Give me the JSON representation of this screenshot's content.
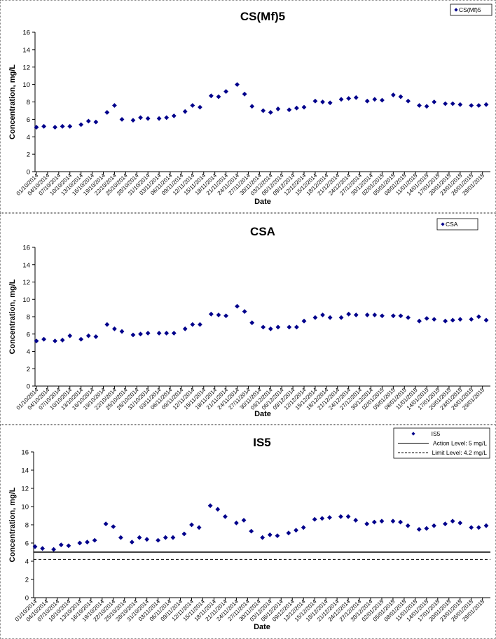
{
  "chart_data": [
    {
      "type": "scatter",
      "title": "CS(Mf)5",
      "xlabel": "Date",
      "ylabel": "Concentration, mg/L",
      "ylim": [
        0,
        16
      ],
      "yticks": [
        0,
        2,
        4,
        6,
        8,
        10,
        12,
        14,
        16
      ],
      "grid": false,
      "legend_position": "top-right",
      "x_range": [
        "01/10/2014",
        "30/01/2015"
      ],
      "x_tick_labels": [
        "01/10/2014",
        "04/10/2014",
        "07/10/2014",
        "10/10/2014",
        "13/10/2014",
        "16/10/2014",
        "19/10/2014",
        "22/10/2014",
        "25/10/2014",
        "28/10/2014",
        "31/10/2014",
        "03/11/2014",
        "06/11/2014",
        "09/11/2014",
        "12/11/2014",
        "15/11/2014",
        "18/11/2014",
        "21/11/2014",
        "24/11/2014",
        "27/11/2014",
        "30/11/2014",
        "03/12/2014",
        "06/12/2014",
        "09/12/2014",
        "12/12/2014",
        "15/12/2014",
        "18/12/2014",
        "21/12/2014",
        "24/12/2014",
        "27/12/2014",
        "30/12/2014",
        "02/01/2015",
        "05/01/2015",
        "08/01/2015",
        "11/01/2015",
        "14/01/2015",
        "17/01/2015",
        "20/01/2015",
        "23/01/2015",
        "26/01/2015",
        "29/01/2015"
      ],
      "series": [
        {
          "name": "CS(Mf)5",
          "color": "#00008B",
          "marker": "diamond",
          "x": [
            "01/10/2014",
            "03/10/2014",
            "06/10/2014",
            "08/10/2014",
            "10/10/2014",
            "13/10/2014",
            "15/10/2014",
            "17/10/2014",
            "20/10/2014",
            "22/10/2014",
            "24/10/2014",
            "27/10/2014",
            "29/10/2014",
            "31/10/2014",
            "03/11/2014",
            "05/11/2014",
            "07/11/2014",
            "10/11/2014",
            "12/11/2014",
            "14/11/2014",
            "17/11/2014",
            "19/11/2014",
            "21/11/2014",
            "24/11/2014",
            "26/11/2014",
            "28/11/2014",
            "01/12/2014",
            "03/12/2014",
            "05/12/2014",
            "08/12/2014",
            "10/12/2014",
            "12/12/2014",
            "15/12/2014",
            "17/12/2014",
            "19/12/2014",
            "22/12/2014",
            "24/12/2014",
            "26/12/2014",
            "29/12/2014",
            "31/12/2014",
            "02/01/2015",
            "05/01/2015",
            "07/01/2015",
            "09/01/2015",
            "12/01/2015",
            "14/01/2015",
            "16/01/2015",
            "19/01/2015",
            "21/01/2015",
            "23/01/2015",
            "26/01/2015",
            "28/01/2015",
            "30/01/2015"
          ],
          "y": [
            5.1,
            5.2,
            5.1,
            5.2,
            5.2,
            5.4,
            5.8,
            5.7,
            6.8,
            7.6,
            6.0,
            5.9,
            6.2,
            6.1,
            6.1,
            6.2,
            6.4,
            6.9,
            7.6,
            7.4,
            8.7,
            8.6,
            9.2,
            10.0,
            8.9,
            7.5,
            7.0,
            6.8,
            7.2,
            7.1,
            7.3,
            7.4,
            8.1,
            8.0,
            7.9,
            8.3,
            8.4,
            8.5,
            8.1,
            8.3,
            8.2,
            8.8,
            8.6,
            8.1,
            7.6,
            7.5,
            8.0,
            7.8,
            7.8,
            7.7,
            7.6,
            7.6,
            7.7
          ]
        }
      ]
    },
    {
      "type": "scatter",
      "title": "CSA",
      "xlabel": "Date",
      "ylabel": "Concentration, mg/L",
      "ylim": [
        0,
        16
      ],
      "yticks": [
        0,
        2,
        4,
        6,
        8,
        10,
        12,
        14,
        16
      ],
      "grid": false,
      "legend_position": "top-right",
      "x_range": [
        "01/10/2014",
        "30/01/2015"
      ],
      "x_tick_labels": [
        "01/10/2014",
        "04/10/2014",
        "07/10/2014",
        "10/10/2014",
        "13/10/2014",
        "16/10/2014",
        "19/10/2014",
        "22/10/2014",
        "25/10/2014",
        "28/10/2014",
        "31/10/2014",
        "03/11/2014",
        "06/11/2014",
        "09/11/2014",
        "12/11/2014",
        "15/11/2014",
        "18/11/2014",
        "21/11/2014",
        "24/11/2014",
        "27/11/2014",
        "30/11/2014",
        "03/12/2014",
        "06/12/2014",
        "09/12/2014",
        "12/12/2014",
        "15/12/2014",
        "18/12/2014",
        "21/12/2014",
        "24/12/2014",
        "27/12/2014",
        "30/12/2014",
        "02/01/2015",
        "05/01/2015",
        "08/01/2015",
        "11/01/2015",
        "14/01/2015",
        "17/01/2015",
        "20/01/2015",
        "23/01/2015",
        "26/01/2015",
        "29/01/2015"
      ],
      "series": [
        {
          "name": "CSA",
          "color": "#00008B",
          "marker": "diamond",
          "x": [
            "01/10/2014",
            "03/10/2014",
            "06/10/2014",
            "08/10/2014",
            "10/10/2014",
            "13/10/2014",
            "15/10/2014",
            "17/10/2014",
            "20/10/2014",
            "22/10/2014",
            "24/10/2014",
            "27/10/2014",
            "29/10/2014",
            "31/10/2014",
            "03/11/2014",
            "05/11/2014",
            "07/11/2014",
            "10/11/2014",
            "12/11/2014",
            "14/11/2014",
            "17/11/2014",
            "19/11/2014",
            "21/11/2014",
            "24/11/2014",
            "26/11/2014",
            "28/11/2014",
            "01/12/2014",
            "03/12/2014",
            "05/12/2014",
            "08/12/2014",
            "10/12/2014",
            "12/12/2014",
            "15/12/2014",
            "17/12/2014",
            "19/12/2014",
            "22/12/2014",
            "24/12/2014",
            "26/12/2014",
            "29/12/2014",
            "31/12/2014",
            "02/01/2015",
            "05/01/2015",
            "07/01/2015",
            "09/01/2015",
            "12/01/2015",
            "14/01/2015",
            "16/01/2015",
            "19/01/2015",
            "21/01/2015",
            "23/01/2015",
            "26/01/2015",
            "28/01/2015",
            "30/01/2015"
          ],
          "y": [
            5.2,
            5.4,
            5.2,
            5.3,
            5.8,
            5.4,
            5.8,
            5.7,
            7.1,
            6.6,
            6.3,
            5.9,
            6.0,
            6.1,
            6.1,
            6.1,
            6.1,
            6.6,
            7.1,
            7.1,
            8.3,
            8.2,
            8.1,
            9.2,
            8.6,
            7.3,
            6.8,
            6.6,
            6.8,
            6.8,
            6.8,
            7.5,
            7.9,
            8.2,
            7.9,
            7.9,
            8.3,
            8.2,
            8.2,
            8.2,
            8.1,
            8.1,
            8.1,
            7.9,
            7.5,
            7.8,
            7.7,
            7.5,
            7.6,
            7.7,
            7.7,
            8.0,
            7.6
          ]
        }
      ]
    },
    {
      "type": "scatter",
      "title": "IS5",
      "xlabel": "Date",
      "ylabel": "Concentration, mg/L",
      "ylim": [
        0,
        16
      ],
      "yticks": [
        0,
        2,
        4,
        6,
        8,
        10,
        12,
        14,
        16
      ],
      "grid": false,
      "legend_position": "top-right",
      "x_range": [
        "01/10/2014",
        "30/01/2015"
      ],
      "x_tick_labels": [
        "01/10/2014",
        "04/10/2014",
        "07/10/2014",
        "10/10/2014",
        "13/10/2014",
        "16/10/2014",
        "19/10/2014",
        "22/10/2014",
        "25/10/2014",
        "28/10/2014",
        "31/10/2014",
        "03/11/2014",
        "06/11/2014",
        "09/11/2014",
        "12/11/2014",
        "15/11/2014",
        "18/11/2014",
        "21/11/2014",
        "24/11/2014",
        "27/11/2014",
        "30/11/2014",
        "03/12/2014",
        "06/12/2014",
        "09/12/2014",
        "12/12/2014",
        "15/12/2014",
        "18/12/2014",
        "21/12/2014",
        "24/12/2014",
        "27/12/2014",
        "30/12/2014",
        "02/01/2015",
        "05/01/2015",
        "08/01/2015",
        "11/01/2015",
        "14/01/2015",
        "17/01/2015",
        "20/01/2015",
        "23/01/2015",
        "26/01/2015",
        "29/01/2015"
      ],
      "series": [
        {
          "name": "IS5",
          "color": "#00008B",
          "marker": "diamond",
          "x": [
            "01/10/2014",
            "03/10/2014",
            "06/10/2014",
            "08/10/2014",
            "10/10/2014",
            "13/10/2014",
            "15/10/2014",
            "17/10/2014",
            "20/10/2014",
            "22/10/2014",
            "24/10/2014",
            "27/10/2014",
            "29/10/2014",
            "31/10/2014",
            "03/11/2014",
            "05/11/2014",
            "07/11/2014",
            "10/11/2014",
            "12/11/2014",
            "14/11/2014",
            "17/11/2014",
            "19/11/2014",
            "21/11/2014",
            "24/11/2014",
            "26/11/2014",
            "28/11/2014",
            "01/12/2014",
            "03/12/2014",
            "05/12/2014",
            "08/12/2014",
            "10/12/2014",
            "12/12/2014",
            "15/12/2014",
            "17/12/2014",
            "19/12/2014",
            "22/12/2014",
            "24/12/2014",
            "26/12/2014",
            "29/12/2014",
            "31/12/2014",
            "02/01/2015",
            "05/01/2015",
            "07/01/2015",
            "09/01/2015",
            "12/01/2015",
            "14/01/2015",
            "16/01/2015",
            "19/01/2015",
            "21/01/2015",
            "23/01/2015",
            "26/01/2015",
            "28/01/2015",
            "30/01/2015"
          ],
          "y": [
            5.6,
            5.4,
            5.3,
            5.8,
            5.7,
            6.0,
            6.1,
            6.3,
            8.1,
            7.8,
            6.6,
            6.1,
            6.6,
            6.4,
            6.3,
            6.6,
            6.6,
            7.0,
            8.0,
            7.7,
            10.1,
            9.7,
            8.9,
            8.2,
            8.5,
            7.3,
            6.6,
            6.9,
            6.8,
            7.1,
            7.4,
            7.7,
            8.6,
            8.7,
            8.8,
            8.9,
            8.9,
            8.5,
            8.1,
            8.3,
            8.4,
            8.4,
            8.3,
            7.9,
            7.5,
            7.6,
            7.9,
            8.1,
            8.4,
            8.2,
            7.7,
            7.7,
            7.9
          ]
        },
        {
          "name": "Action Level: 5 mg/L",
          "type": "hline",
          "value": 5,
          "color": "#000000",
          "style": "solid"
        },
        {
          "name": "Limit Level: 4.2 mg/L",
          "type": "hline",
          "value": 4.2,
          "color": "#000000",
          "style": "dashed"
        }
      ]
    }
  ]
}
